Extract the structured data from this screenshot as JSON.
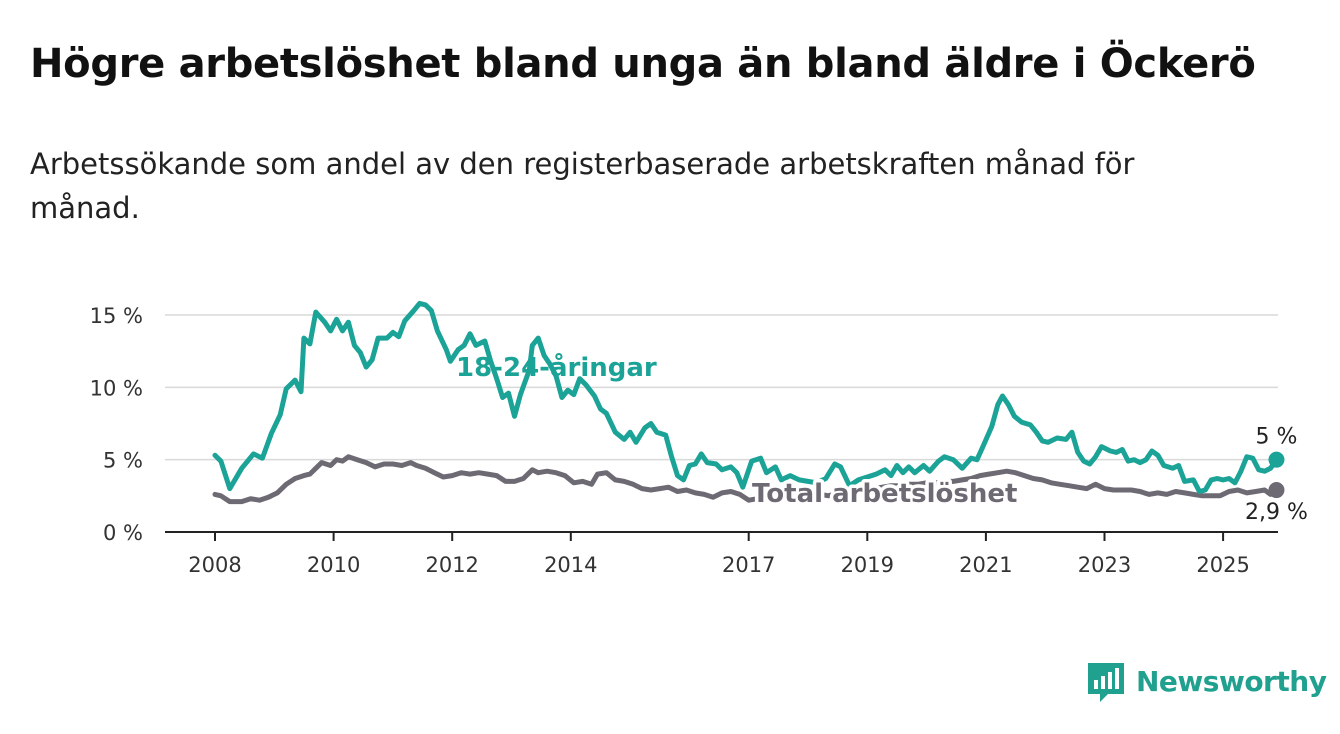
{
  "title": "Högre arbetslöshet bland unga än bland äldre i Öckerö",
  "subtitle": "Arbetssökande som andel av den registerbaserade arbetskraften månad för månad.",
  "brand": {
    "name": "Newsworthy",
    "icon": "newsworthy-chart-logo-icon"
  },
  "colors": {
    "young": "#1aa396",
    "total": "#6e6a74",
    "grid": "#d9d9d9",
    "axis": "#222222"
  },
  "chart_data": {
    "type": "line",
    "xlim": [
      2008,
      2025.5
    ],
    "ylim": [
      0,
      15.5
    ],
    "grid": "horizontal",
    "yticks": [
      {
        "value": 0,
        "label": "0 %"
      },
      {
        "value": 5,
        "label": "5 %"
      },
      {
        "value": 10,
        "label": "10 %"
      },
      {
        "value": 15,
        "label": "15 %"
      }
    ],
    "xticks": [
      {
        "value": 2008,
        "label": "2008"
      },
      {
        "value": 2010,
        "label": "2010"
      },
      {
        "value": 2012,
        "label": "2012"
      },
      {
        "value": 2014,
        "label": "2014"
      },
      {
        "value": 2017,
        "label": "2017"
      },
      {
        "value": 2019,
        "label": "2019"
      },
      {
        "value": 2021,
        "label": "2021"
      },
      {
        "value": 2023,
        "label": "2023"
      },
      {
        "value": 2025,
        "label": "2025"
      }
    ],
    "series": [
      {
        "name": "18-24-åringar",
        "color": "#1aa396",
        "end_label": "5 %",
        "points": [
          [
            2008.0,
            5.3
          ],
          [
            2008.1,
            4.9
          ],
          [
            2008.25,
            3.0
          ],
          [
            2008.45,
            4.4
          ],
          [
            2008.65,
            5.4
          ],
          [
            2008.8,
            5.1
          ],
          [
            2008.95,
            6.8
          ],
          [
            2009.1,
            8.1
          ],
          [
            2009.2,
            9.9
          ],
          [
            2009.35,
            10.5
          ],
          [
            2009.45,
            9.7
          ],
          [
            2009.5,
            13.4
          ],
          [
            2009.6,
            13.0
          ],
          [
            2009.7,
            15.2
          ],
          [
            2009.85,
            14.5
          ],
          [
            2009.95,
            13.9
          ],
          [
            2010.05,
            14.7
          ],
          [
            2010.15,
            13.9
          ],
          [
            2010.25,
            14.5
          ],
          [
            2010.35,
            12.9
          ],
          [
            2010.45,
            12.4
          ],
          [
            2010.55,
            11.4
          ],
          [
            2010.65,
            11.9
          ],
          [
            2010.75,
            13.4
          ],
          [
            2010.9,
            13.4
          ],
          [
            2011.0,
            13.8
          ],
          [
            2011.1,
            13.5
          ],
          [
            2011.2,
            14.6
          ],
          [
            2011.35,
            15.3
          ],
          [
            2011.45,
            15.8
          ],
          [
            2011.55,
            15.7
          ],
          [
            2011.65,
            15.3
          ],
          [
            2011.75,
            13.9
          ],
          [
            2011.9,
            12.6
          ],
          [
            2011.97,
            11.8
          ],
          [
            2012.1,
            12.6
          ],
          [
            2012.2,
            12.9
          ],
          [
            2012.3,
            13.7
          ],
          [
            2012.4,
            12.9
          ],
          [
            2012.55,
            13.2
          ],
          [
            2012.65,
            11.8
          ],
          [
            2012.75,
            10.6
          ],
          [
            2012.85,
            9.3
          ],
          [
            2012.95,
            9.6
          ],
          [
            2013.05,
            8.0
          ],
          [
            2013.15,
            9.5
          ],
          [
            2013.3,
            11.2
          ],
          [
            2013.35,
            12.9
          ],
          [
            2013.45,
            13.4
          ],
          [
            2013.55,
            12.2
          ],
          [
            2013.65,
            11.6
          ],
          [
            2013.75,
            10.8
          ],
          [
            2013.85,
            9.3
          ],
          [
            2013.95,
            9.8
          ],
          [
            2014.05,
            9.5
          ],
          [
            2014.15,
            10.6
          ],
          [
            2014.25,
            10.2
          ],
          [
            2014.4,
            9.4
          ],
          [
            2014.5,
            8.5
          ],
          [
            2014.6,
            8.2
          ],
          [
            2014.75,
            6.9
          ],
          [
            2014.9,
            6.4
          ],
          [
            2015.0,
            6.9
          ],
          [
            2015.1,
            6.2
          ],
          [
            2015.25,
            7.2
          ],
          [
            2015.35,
            7.5
          ],
          [
            2015.45,
            6.9
          ],
          [
            2015.6,
            6.7
          ],
          [
            2015.7,
            5.2
          ],
          [
            2015.8,
            3.9
          ],
          [
            2015.9,
            3.6
          ],
          [
            2016.0,
            4.6
          ],
          [
            2016.1,
            4.7
          ],
          [
            2016.2,
            5.4
          ],
          [
            2016.3,
            4.8
          ],
          [
            2016.45,
            4.7
          ],
          [
            2016.55,
            4.3
          ],
          [
            2016.7,
            4.5
          ],
          [
            2016.8,
            4.1
          ],
          [
            2016.9,
            3.1
          ],
          [
            2017.05,
            4.9
          ],
          [
            2017.2,
            5.1
          ],
          [
            2017.3,
            4.1
          ],
          [
            2017.45,
            4.5
          ],
          [
            2017.55,
            3.6
          ],
          [
            2017.7,
            3.9
          ],
          [
            2017.85,
            3.6
          ],
          [
            2018.0,
            3.5
          ],
          [
            2018.15,
            3.4
          ],
          [
            2018.3,
            3.7
          ],
          [
            2018.45,
            4.7
          ],
          [
            2018.55,
            4.5
          ],
          [
            2018.7,
            3.2
          ],
          [
            2018.85,
            3.6
          ],
          [
            2019.0,
            3.8
          ],
          [
            2019.15,
            4.0
          ],
          [
            2019.3,
            4.3
          ],
          [
            2019.4,
            3.9
          ],
          [
            2019.5,
            4.6
          ],
          [
            2019.6,
            4.1
          ],
          [
            2019.7,
            4.5
          ],
          [
            2019.8,
            4.1
          ],
          [
            2019.95,
            4.6
          ],
          [
            2020.05,
            4.2
          ],
          [
            2020.2,
            4.9
          ],
          [
            2020.3,
            5.2
          ],
          [
            2020.45,
            5.0
          ],
          [
            2020.6,
            4.4
          ],
          [
            2020.75,
            5.1
          ],
          [
            2020.85,
            5.0
          ],
          [
            2020.95,
            5.9
          ],
          [
            2021.1,
            7.3
          ],
          [
            2021.2,
            8.8
          ],
          [
            2021.28,
            9.4
          ],
          [
            2021.38,
            8.8
          ],
          [
            2021.48,
            8.0
          ],
          [
            2021.6,
            7.6
          ],
          [
            2021.75,
            7.4
          ],
          [
            2021.85,
            6.9
          ],
          [
            2021.95,
            6.3
          ],
          [
            2022.05,
            6.2
          ],
          [
            2022.2,
            6.5
          ],
          [
            2022.35,
            6.4
          ],
          [
            2022.45,
            6.9
          ],
          [
            2022.55,
            5.5
          ],
          [
            2022.65,
            4.9
          ],
          [
            2022.75,
            4.7
          ],
          [
            2022.85,
            5.2
          ],
          [
            2022.95,
            5.9
          ],
          [
            2023.1,
            5.6
          ],
          [
            2023.2,
            5.5
          ],
          [
            2023.3,
            5.7
          ],
          [
            2023.4,
            4.9
          ],
          [
            2023.5,
            5.0
          ],
          [
            2023.6,
            4.8
          ],
          [
            2023.7,
            5.0
          ],
          [
            2023.8,
            5.6
          ],
          [
            2023.9,
            5.3
          ],
          [
            2024.0,
            4.6
          ],
          [
            2024.15,
            4.4
          ],
          [
            2024.25,
            4.6
          ],
          [
            2024.35,
            3.5
          ],
          [
            2024.5,
            3.6
          ],
          [
            2024.6,
            2.8
          ],
          [
            2024.7,
            2.9
          ],
          [
            2024.8,
            3.6
          ],
          [
            2024.9,
            3.7
          ],
          [
            2025.0,
            3.6
          ],
          [
            2025.1,
            3.7
          ],
          [
            2025.2,
            3.4
          ],
          [
            2025.3,
            4.2
          ],
          [
            2025.4,
            5.2
          ],
          [
            2025.5,
            5.1
          ],
          [
            2025.6,
            4.3
          ],
          [
            2025.7,
            4.2
          ],
          [
            2025.8,
            4.4
          ],
          [
            2025.9,
            5.0
          ]
        ]
      },
      {
        "name": "Total arbetslöshet",
        "color": "#6e6a74",
        "end_label": "2,9 %",
        "points": [
          [
            2008.0,
            2.6
          ],
          [
            2008.1,
            2.5
          ],
          [
            2008.25,
            2.1
          ],
          [
            2008.45,
            2.1
          ],
          [
            2008.6,
            2.3
          ],
          [
            2008.75,
            2.2
          ],
          [
            2008.9,
            2.4
          ],
          [
            2009.05,
            2.7
          ],
          [
            2009.2,
            3.3
          ],
          [
            2009.35,
            3.7
          ],
          [
            2009.5,
            3.9
          ],
          [
            2009.6,
            4.0
          ],
          [
            2009.7,
            4.4
          ],
          [
            2009.8,
            4.8
          ],
          [
            2009.95,
            4.6
          ],
          [
            2010.05,
            5.0
          ],
          [
            2010.15,
            4.9
          ],
          [
            2010.25,
            5.2
          ],
          [
            2010.4,
            5.0
          ],
          [
            2010.55,
            4.8
          ],
          [
            2010.7,
            4.5
          ],
          [
            2010.85,
            4.7
          ],
          [
            2011.0,
            4.7
          ],
          [
            2011.15,
            4.6
          ],
          [
            2011.3,
            4.8
          ],
          [
            2011.4,
            4.6
          ],
          [
            2011.55,
            4.4
          ],
          [
            2011.7,
            4.1
          ],
          [
            2011.85,
            3.8
          ],
          [
            2012.0,
            3.9
          ],
          [
            2012.15,
            4.1
          ],
          [
            2012.3,
            4.0
          ],
          [
            2012.45,
            4.1
          ],
          [
            2012.6,
            4.0
          ],
          [
            2012.75,
            3.9
          ],
          [
            2012.9,
            3.5
          ],
          [
            2013.05,
            3.5
          ],
          [
            2013.2,
            3.7
          ],
          [
            2013.35,
            4.3
          ],
          [
            2013.45,
            4.1
          ],
          [
            2013.6,
            4.2
          ],
          [
            2013.75,
            4.1
          ],
          [
            2013.9,
            3.9
          ],
          [
            2014.05,
            3.4
          ],
          [
            2014.2,
            3.5
          ],
          [
            2014.35,
            3.3
          ],
          [
            2014.45,
            4.0
          ],
          [
            2014.6,
            4.1
          ],
          [
            2014.75,
            3.6
          ],
          [
            2014.9,
            3.5
          ],
          [
            2015.05,
            3.3
          ],
          [
            2015.2,
            3.0
          ],
          [
            2015.35,
            2.9
          ],
          [
            2015.5,
            3.0
          ],
          [
            2015.65,
            3.1
          ],
          [
            2015.8,
            2.8
          ],
          [
            2015.95,
            2.9
          ],
          [
            2016.1,
            2.7
          ],
          [
            2016.25,
            2.6
          ],
          [
            2016.4,
            2.4
          ],
          [
            2016.55,
            2.7
          ],
          [
            2016.7,
            2.8
          ],
          [
            2016.85,
            2.6
          ],
          [
            2017.0,
            2.2
          ],
          [
            2017.15,
            2.3
          ],
          [
            2017.3,
            2.3
          ],
          [
            2017.45,
            2.2
          ],
          [
            2017.6,
            2.4
          ],
          [
            2017.75,
            2.3
          ],
          [
            2017.9,
            2.4
          ],
          [
            2018.05,
            2.5
          ],
          [
            2018.2,
            2.6
          ],
          [
            2018.35,
            2.5
          ],
          [
            2018.5,
            2.7
          ],
          [
            2018.65,
            2.6
          ],
          [
            2018.8,
            2.8
          ],
          [
            2018.95,
            2.9
          ],
          [
            2019.1,
            3.0
          ],
          [
            2019.25,
            3.1
          ],
          [
            2019.4,
            3.2
          ],
          [
            2019.55,
            3.2
          ],
          [
            2019.7,
            3.3
          ],
          [
            2019.85,
            3.3
          ],
          [
            2020.0,
            3.4
          ],
          [
            2020.15,
            3.4
          ],
          [
            2020.3,
            3.5
          ],
          [
            2020.45,
            3.5
          ],
          [
            2020.6,
            3.6
          ],
          [
            2020.75,
            3.7
          ],
          [
            2020.9,
            3.9
          ],
          [
            2021.05,
            4.0
          ],
          [
            2021.2,
            4.1
          ],
          [
            2021.35,
            4.2
          ],
          [
            2021.5,
            4.1
          ],
          [
            2021.65,
            3.9
          ],
          [
            2021.8,
            3.7
          ],
          [
            2021.95,
            3.6
          ],
          [
            2022.1,
            3.4
          ],
          [
            2022.25,
            3.3
          ],
          [
            2022.4,
            3.2
          ],
          [
            2022.55,
            3.1
          ],
          [
            2022.7,
            3.0
          ],
          [
            2022.85,
            3.3
          ],
          [
            2023.0,
            3.0
          ],
          [
            2023.15,
            2.9
          ],
          [
            2023.3,
            2.9
          ],
          [
            2023.45,
            2.9
          ],
          [
            2023.6,
            2.8
          ],
          [
            2023.75,
            2.6
          ],
          [
            2023.9,
            2.7
          ],
          [
            2024.05,
            2.6
          ],
          [
            2024.2,
            2.8
          ],
          [
            2024.35,
            2.7
          ],
          [
            2024.5,
            2.6
          ],
          [
            2024.65,
            2.5
          ],
          [
            2024.8,
            2.5
          ],
          [
            2024.95,
            2.5
          ],
          [
            2025.1,
            2.8
          ],
          [
            2025.25,
            2.9
          ],
          [
            2025.4,
            2.7
          ],
          [
            2025.55,
            2.8
          ],
          [
            2025.7,
            2.9
          ],
          [
            2025.8,
            2.6
          ],
          [
            2025.9,
            2.9
          ]
        ]
      }
    ]
  }
}
